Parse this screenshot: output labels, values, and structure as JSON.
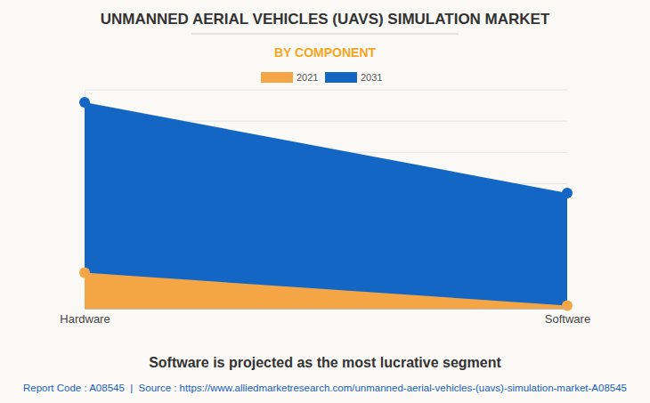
{
  "chart_data": {
    "type": "area",
    "title": "UNMANNED AERIAL VEHICLES (UAVS) SIMULATION MARKET",
    "subtitle": "BY COMPONENT",
    "annotations": [
      "Software is projected as the most lucrative segment",
      "Report Code : A08545  |  Source : https://www.alliedmarketresearch.com/unmanned-aerial-vehicles-(uavs)-simulation-market-A08545"
    ],
    "categories": [
      "Hardware",
      "Software"
    ],
    "series": [
      {
        "name": "2031",
        "color": "#1466c4",
        "values": [
          6.6,
          3.7
        ]
      },
      {
        "name": "2021",
        "color": "#f4a646",
        "values": [
          1.15,
          0.1
        ]
      }
    ],
    "ylim": [
      0,
      7
    ],
    "yticks": [
      0,
      1,
      2,
      3,
      4,
      5,
      6,
      7
    ],
    "grid": true,
    "legend": "top",
    "tick_labels": "x",
    "marker": "circle"
  }
}
